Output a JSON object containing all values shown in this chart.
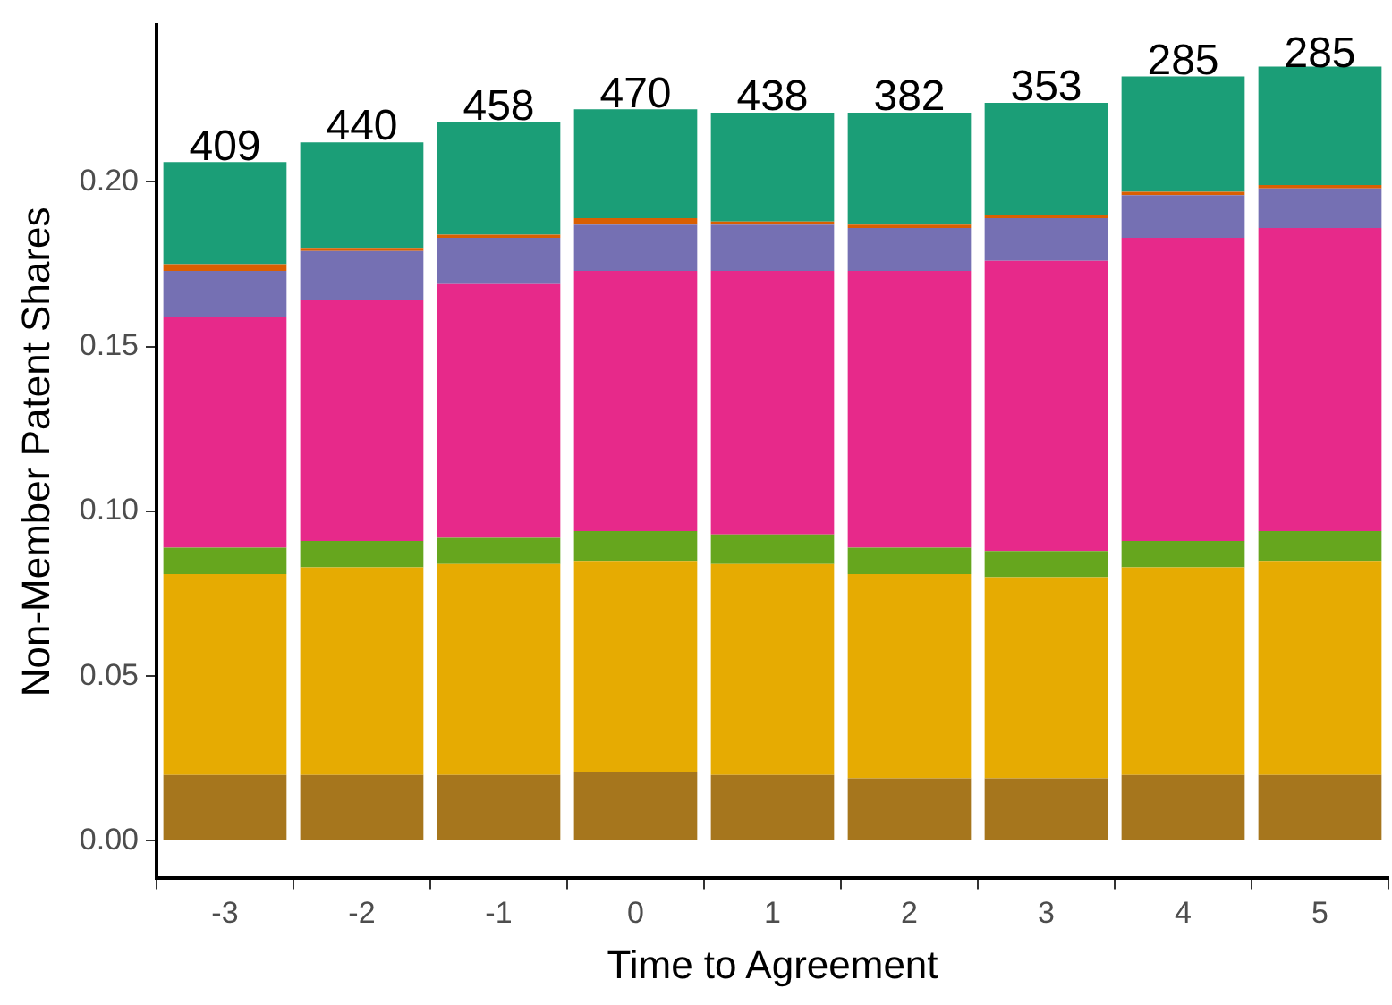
{
  "chart_data": {
    "type": "bar",
    "stacked": true,
    "xlabel": "Time to Agreement",
    "ylabel": "Non-Member Patent Shares",
    "categories": [
      "-3",
      "-2",
      "-1",
      "0",
      "1",
      "2",
      "3",
      "4",
      "5"
    ],
    "series": [
      {
        "color": "#a6761d",
        "values": [
          0.02,
          0.02,
          0.02,
          0.021,
          0.02,
          0.019,
          0.019,
          0.02,
          0.02
        ]
      },
      {
        "color": "#e6ab02",
        "values": [
          0.061,
          0.063,
          0.064,
          0.064,
          0.064,
          0.062,
          0.061,
          0.063,
          0.065
        ]
      },
      {
        "color": "#66a61e",
        "values": [
          0.008,
          0.008,
          0.008,
          0.009,
          0.009,
          0.008,
          0.008,
          0.008,
          0.009
        ]
      },
      {
        "color": "#e7298a",
        "values": [
          0.07,
          0.073,
          0.077,
          0.079,
          0.08,
          0.084,
          0.088,
          0.092,
          0.092
        ]
      },
      {
        "color": "#7570b3",
        "values": [
          0.014,
          0.015,
          0.014,
          0.014,
          0.014,
          0.013,
          0.013,
          0.013,
          0.012
        ]
      },
      {
        "color": "#d95f02",
        "values": [
          0.002,
          0.001,
          0.001,
          0.002,
          0.001,
          0.001,
          0.001,
          0.001,
          0.001
        ]
      },
      {
        "color": "#1b9e77",
        "values": [
          0.031,
          0.032,
          0.034,
          0.033,
          0.033,
          0.034,
          0.034,
          0.035,
          0.036
        ]
      }
    ],
    "annotations": [
      {
        "text": "409",
        "x": "-3",
        "y": 0.206
      },
      {
        "text": "440",
        "x": "-2",
        "y": 0.212
      },
      {
        "text": "458",
        "x": "-1",
        "y": 0.218
      },
      {
        "text": "470",
        "x": "0",
        "y": 0.222
      },
      {
        "text": "438",
        "x": "1",
        "y": 0.221
      },
      {
        "text": "382",
        "x": "2",
        "y": 0.221
      },
      {
        "text": "353",
        "x": "3",
        "y": 0.224
      },
      {
        "text": "285",
        "x": "4",
        "y": 0.232
      },
      {
        "text": "285",
        "x": "5",
        "y": 0.234
      }
    ],
    "ylim": [
      -0.0114,
      0.2475
    ],
    "yticks": [
      {
        "value": 0,
        "label": "0.00"
      },
      {
        "value": 0.05,
        "label": "0.05"
      },
      {
        "value": 0.1,
        "label": "0.10"
      },
      {
        "value": 0.15,
        "label": "0.15"
      },
      {
        "value": 0.2,
        "label": "0.20"
      }
    ],
    "legend": false
  }
}
